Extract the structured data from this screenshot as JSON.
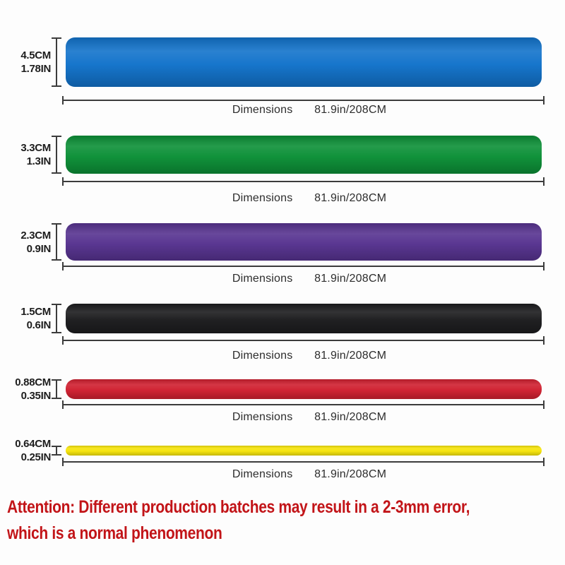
{
  "bands": [
    {
      "name": "blue",
      "color": "#1273CB",
      "height_cm": "4.5CM",
      "height_in": "1.78IN",
      "dimensions_label": "Dimensions",
      "dimensions_value": "81.9in/208CM"
    },
    {
      "name": "green",
      "color": "#0C9037",
      "height_cm": "3.3CM",
      "height_in": "1.3IN",
      "dimensions_label": "Dimensions",
      "dimensions_value": "81.9in/208CM"
    },
    {
      "name": "purple",
      "color": "#573390",
      "height_cm": "2.3CM",
      "height_in": "0.9IN",
      "dimensions_label": "Dimensions",
      "dimensions_value": "81.9in/208CM"
    },
    {
      "name": "black",
      "color": "#1C1C1E",
      "height_cm": "1.5CM",
      "height_in": "0.6IN",
      "dimensions_label": "Dimensions",
      "dimensions_value": "81.9in/208CM"
    },
    {
      "name": "red",
      "color": "#D02030",
      "height_cm": "0.88CM",
      "height_in": "0.35IN",
      "dimensions_label": "Dimensions",
      "dimensions_value": "81.9in/208CM"
    },
    {
      "name": "yellow",
      "color": "#F6E40B",
      "height_cm": "0.64CM",
      "height_in": "0.25IN",
      "dimensions_label": "Dimensions",
      "dimensions_value": "81.9in/208CM"
    }
  ],
  "attention": {
    "line1": "Attention: Different production batches may result in a 2-3mm error,",
    "line2": "which is a normal phenomenon",
    "color": "#C21418"
  }
}
